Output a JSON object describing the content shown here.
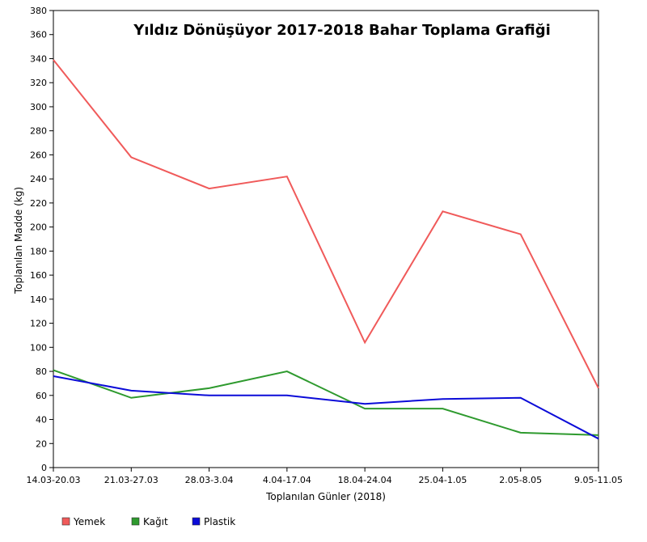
{
  "chart_data": {
    "type": "line",
    "title": "Yıldız Dönüşüyor 2017-2018 Bahar Toplama Grafiği",
    "xlabel": "Toplanılan Günler (2018)",
    "ylabel": "Toplanılan Madde (kg)",
    "ylim": [
      0,
      380
    ],
    "yticks": [
      0,
      20,
      40,
      60,
      80,
      100,
      120,
      140,
      160,
      180,
      200,
      220,
      240,
      260,
      280,
      300,
      320,
      340,
      360,
      380
    ],
    "categories": [
      "14.03-20.03",
      "21.03-27.03",
      "28.03-3.04",
      "4.04-17.04",
      "18.04-24.04",
      "25.04-1.05",
      "2.05-8.05",
      "9.05-11.05"
    ],
    "series": [
      {
        "name": "Yemek",
        "color": "#f05a5a",
        "values": [
          339,
          258,
          232,
          242,
          104,
          213,
          194,
          66
        ]
      },
      {
        "name": "Kağıt",
        "color": "#2e9a2e",
        "values": [
          81,
          58,
          66,
          80,
          49,
          49,
          29,
          27
        ]
      },
      {
        "name": "Plastik",
        "color": "#0b0bd8",
        "values": [
          76,
          64,
          60,
          60,
          53,
          57,
          58,
          24
        ]
      }
    ],
    "grid": false,
    "legend_position": "bottom-left"
  }
}
